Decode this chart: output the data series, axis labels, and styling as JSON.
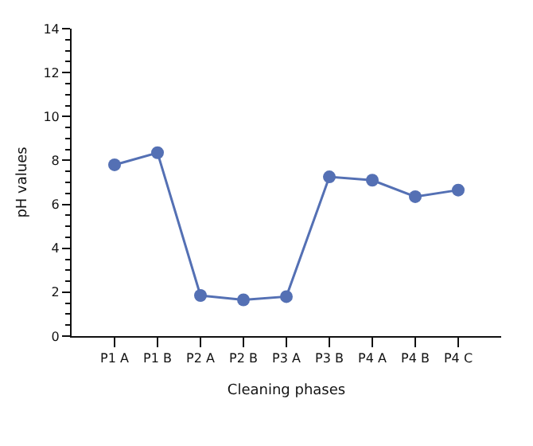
{
  "chart_data": {
    "type": "line",
    "xlabel": "Cleaning phases",
    "ylabel": "pH values",
    "categories": [
      "P1 A",
      "P1 B",
      "P2 A",
      "P2 B",
      "P3 A",
      "P3 B",
      "P4 A",
      "P4 B",
      "P4 C"
    ],
    "series": [
      {
        "color": "#5470b4",
        "values": [
          7.8,
          8.35,
          1.85,
          1.65,
          1.8,
          7.25,
          7.1,
          6.35,
          6.65
        ]
      }
    ],
    "ylim": [
      0,
      14
    ],
    "yticks": [
      0,
      2,
      4,
      6,
      8,
      10,
      12,
      14
    ],
    "marker": "circle",
    "line_style": "solid"
  }
}
